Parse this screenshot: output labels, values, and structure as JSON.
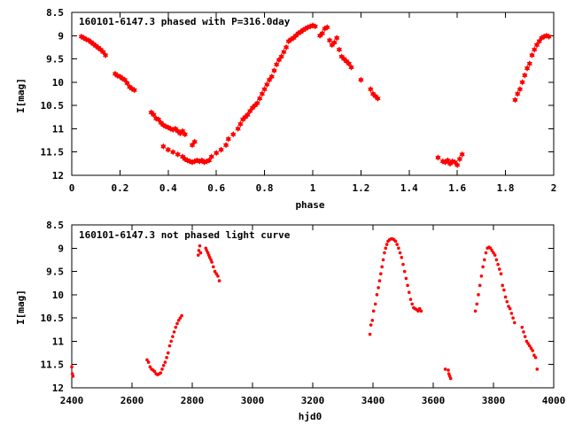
{
  "chart_data": [
    {
      "type": "scatter",
      "title": "160101-6147.3 phased with P=316.0day",
      "xlabel": "phase",
      "ylabel": "I[mag]",
      "xlim": [
        0,
        2
      ],
      "ylim": [
        8.5,
        12
      ],
      "y_inverted": true,
      "xticks": [
        "0",
        "0.2",
        "0.4",
        "0.6",
        "0.8",
        "1",
        "1.2",
        "1.4",
        "1.6",
        "1.8",
        "2"
      ],
      "yticks": [
        "8.5",
        "9",
        "9.5",
        "10",
        "10.5",
        "11",
        "11.5",
        "12"
      ],
      "grid": false,
      "marker_color": "#ff0000",
      "marker": "star",
      "series": [
        {
          "x": [
            0.04,
            0.05,
            0.06,
            0.07,
            0.08,
            0.09,
            0.1,
            0.11,
            0.12,
            0.13,
            0.14,
            0.18,
            0.19,
            0.2,
            0.21,
            0.22,
            0.23,
            0.24,
            0.25,
            0.26,
            0.33,
            0.34,
            0.35,
            0.36,
            0.37,
            0.38,
            0.39,
            0.4,
            0.41,
            0.42,
            0.43,
            0.44,
            0.45,
            0.46,
            0.47,
            0.38,
            0.4,
            0.42,
            0.44,
            0.46,
            0.47,
            0.48,
            0.49,
            0.5,
            0.51,
            0.52,
            0.53,
            0.54,
            0.55,
            0.56,
            0.57,
            0.5,
            0.51,
            0.58,
            0.6,
            0.62,
            0.64,
            0.65,
            0.67,
            0.69,
            0.7,
            0.71,
            0.72,
            0.73,
            0.74,
            0.75,
            0.76,
            0.77,
            0.78,
            0.79,
            0.8,
            0.81,
            0.82,
            0.83,
            0.84,
            0.85,
            0.86,
            0.87,
            0.88,
            0.89,
            0.9,
            0.91,
            0.92,
            0.93,
            0.94,
            0.95,
            0.96,
            0.97,
            0.98,
            0.99,
            1.0,
            1.01,
            1.03,
            1.04,
            1.05,
            1.06,
            1.07,
            1.08,
            1.09,
            1.1,
            1.11,
            1.12,
            1.13,
            1.14,
            1.15,
            1.16,
            1.2,
            1.24,
            1.25,
            1.26,
            1.27,
            1.52,
            1.54,
            1.55,
            1.56,
            1.57,
            1.58,
            1.59,
            1.6,
            1.61,
            1.62,
            1.84,
            1.85,
            1.86,
            1.87,
            1.88,
            1.89,
            1.9,
            1.91,
            1.92,
            1.93,
            1.94,
            1.95,
            1.96,
            1.97,
            1.98
          ],
          "y": [
            9.02,
            9.05,
            9.08,
            9.1,
            9.14,
            9.18,
            9.22,
            9.26,
            9.3,
            9.35,
            9.42,
            9.82,
            9.86,
            9.88,
            9.92,
            9.95,
            10.02,
            10.1,
            10.14,
            10.17,
            10.65,
            10.7,
            10.78,
            10.8,
            10.87,
            10.92,
            10.95,
            10.97,
            11.0,
            11.02,
            11.0,
            11.05,
            11.1,
            11.05,
            11.12,
            11.38,
            11.45,
            11.5,
            11.55,
            11.6,
            11.65,
            11.68,
            11.7,
            11.72,
            11.7,
            11.68,
            11.7,
            11.68,
            11.72,
            11.7,
            11.68,
            11.35,
            11.28,
            11.6,
            11.52,
            11.45,
            11.35,
            11.22,
            11.12,
            11.0,
            10.9,
            10.8,
            10.75,
            10.7,
            10.62,
            10.55,
            10.5,
            10.45,
            10.35,
            10.25,
            10.15,
            10.05,
            9.95,
            9.88,
            9.75,
            9.62,
            9.52,
            9.45,
            9.35,
            9.25,
            9.12,
            9.08,
            9.05,
            9.0,
            8.95,
            8.92,
            8.88,
            8.85,
            8.82,
            8.8,
            8.78,
            8.8,
            9.0,
            8.95,
            8.85,
            8.82,
            9.1,
            9.2,
            9.15,
            9.05,
            9.3,
            9.45,
            9.5,
            9.55,
            9.6,
            9.68,
            9.95,
            10.15,
            10.25,
            10.3,
            10.35,
            11.62,
            11.7,
            11.72,
            11.68,
            11.75,
            11.7,
            11.72,
            11.78,
            11.65,
            11.55,
            10.38,
            10.25,
            10.15,
            10.0,
            9.85,
            9.7,
            9.6,
            9.42,
            9.3,
            9.2,
            9.12,
            9.05,
            9.02,
            9.0,
            9.02
          ]
        }
      ]
    },
    {
      "type": "scatter",
      "title": "160101-6147.3 not phased light curve",
      "xlabel": "hjd0",
      "ylabel": "I[mag]",
      "xlim": [
        2400,
        4000
      ],
      "ylim": [
        8.5,
        12
      ],
      "y_inverted": true,
      "xticks": [
        "2400",
        "2600",
        "2800",
        "3000",
        "3200",
        "3400",
        "3600",
        "3800",
        "4000"
      ],
      "yticks": [
        "8.5",
        "9",
        "9.5",
        "10",
        "10.5",
        "11",
        "11.5",
        "12"
      ],
      "grid": false,
      "marker_color": "#ff0000",
      "marker": "dot",
      "series": [
        {
          "x": [
            2400,
            2402,
            2404,
            2650,
            2655,
            2660,
            2665,
            2670,
            2675,
            2680,
            2685,
            2690,
            2695,
            2700,
            2705,
            2710,
            2715,
            2720,
            2725,
            2730,
            2735,
            2740,
            2745,
            2750,
            2755,
            2760,
            2765,
            2820,
            2822,
            2825,
            2828,
            2845,
            2848,
            2852,
            2855,
            2858,
            2862,
            2865,
            2870,
            2875,
            2880,
            2885,
            2890,
            3390,
            3393,
            3398,
            3402,
            3408,
            3413,
            3418,
            3422,
            3426,
            3430,
            3434,
            3438,
            3442,
            3446,
            3450,
            3455,
            3460,
            3465,
            3470,
            3475,
            3480,
            3485,
            3490,
            3495,
            3500,
            3505,
            3510,
            3515,
            3520,
            3525,
            3530,
            3535,
            3540,
            3545,
            3550,
            3555,
            3560,
            3640,
            3650,
            3652,
            3655,
            3658,
            3740,
            3745,
            3750,
            3755,
            3760,
            3765,
            3770,
            3775,
            3780,
            3785,
            3790,
            3795,
            3800,
            3805,
            3810,
            3815,
            3820,
            3825,
            3830,
            3835,
            3840,
            3845,
            3850,
            3855,
            3860,
            3865,
            3870,
            3895,
            3900,
            3905,
            3910,
            3915,
            3920,
            3925,
            3930,
            3935,
            3940,
            3945
          ],
          "y": [
            11.55,
            11.7,
            11.75,
            11.4,
            11.45,
            11.55,
            11.6,
            11.62,
            11.65,
            11.7,
            11.72,
            11.7,
            11.68,
            11.6,
            11.52,
            11.45,
            11.35,
            11.25,
            11.1,
            11.0,
            10.9,
            10.8,
            10.7,
            10.62,
            10.55,
            10.5,
            10.45,
            9.15,
            9.05,
            8.95,
            9.1,
            9.0,
            9.05,
            9.1,
            9.15,
            9.2,
            9.25,
            9.3,
            9.4,
            9.5,
            9.55,
            9.6,
            9.7,
            10.85,
            10.65,
            10.55,
            10.35,
            10.2,
            10.0,
            9.85,
            9.7,
            9.55,
            9.4,
            9.25,
            9.1,
            9.0,
            8.92,
            8.85,
            8.82,
            8.8,
            8.8,
            8.82,
            8.85,
            8.92,
            9.0,
            9.1,
            9.2,
            9.35,
            9.5,
            9.65,
            9.8,
            9.95,
            10.1,
            10.2,
            10.28,
            10.3,
            10.32,
            10.35,
            10.3,
            10.35,
            11.6,
            11.62,
            11.7,
            11.75,
            11.8,
            10.35,
            10.2,
            10.0,
            9.8,
            9.6,
            9.4,
            9.25,
            9.1,
            9.0,
            8.98,
            9.0,
            9.05,
            9.1,
            9.15,
            9.25,
            9.35,
            9.45,
            9.55,
            9.8,
            9.9,
            10.05,
            10.15,
            10.25,
            10.3,
            10.4,
            10.5,
            10.6,
            10.7,
            10.8,
            10.9,
            11.0,
            11.05,
            11.1,
            11.15,
            11.2,
            11.3,
            11.35,
            11.6
          ]
        }
      ]
    }
  ]
}
